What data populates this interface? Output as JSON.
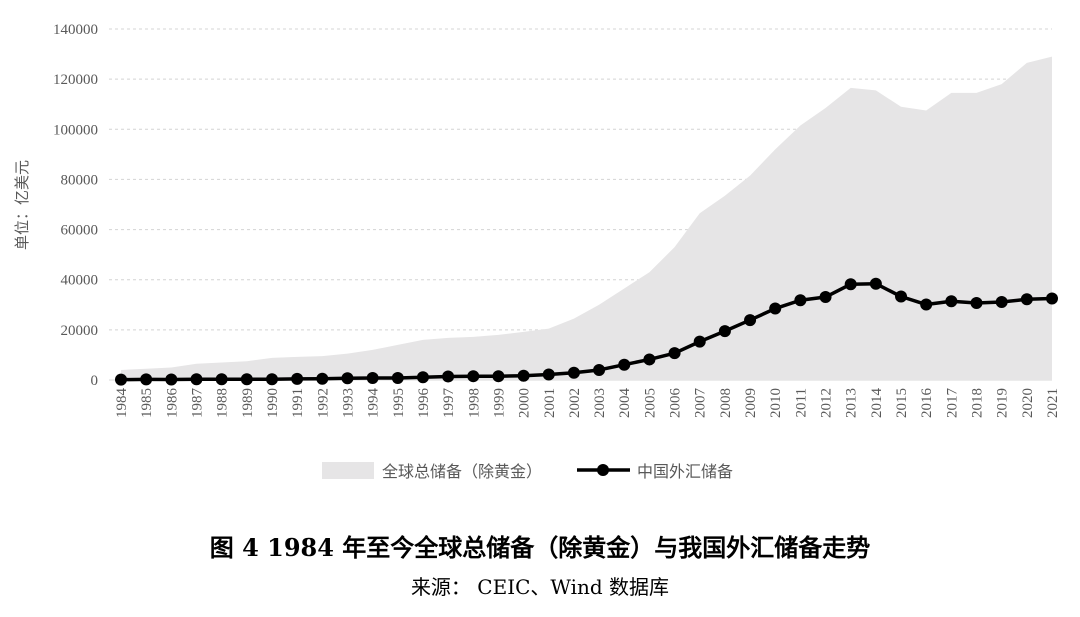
{
  "chart_data": {
    "type": "area",
    "title": "",
    "xlabel": "",
    "ylabel": "单位：亿美元",
    "ylim": [
      0,
      140000
    ],
    "yticks": [
      "0",
      "20000",
      "40000",
      "60000",
      "80000",
      "100000",
      "120000",
      "140000"
    ],
    "grid": "horizontal dashed",
    "legend_position": "bottom",
    "categories": [
      "1984",
      "1985",
      "1986",
      "1987",
      "1988",
      "1989",
      "1990",
      "1991",
      "1992",
      "1993",
      "1994",
      "1995",
      "1996",
      "1997",
      "1998",
      "1999",
      "2000",
      "2001",
      "2002",
      "2003",
      "2004",
      "2005",
      "2006",
      "2007",
      "2008",
      "2009",
      "2010",
      "2011",
      "2012",
      "2013",
      "2014",
      "2015",
      "2016",
      "2017",
      "2018",
      "2019",
      "2020",
      "2021"
    ],
    "series": [
      {
        "name": "全球总储备（除黄金）",
        "kind": "area",
        "color": "#e6e5e6",
        "values": [
          4000,
          4500,
          5000,
          6500,
          7000,
          7500,
          8800,
          9200,
          9500,
          10500,
          12000,
          14000,
          16000,
          16800,
          17200,
          18000,
          19200,
          20500,
          24500,
          30000,
          36500,
          43000,
          53000,
          66500,
          73500,
          81500,
          92000,
          101500,
          108500,
          116500,
          115500,
          109000,
          107500,
          114500,
          114500,
          118000,
          126500,
          129000
        ]
      },
      {
        "name": "中国外汇储备",
        "kind": "line",
        "color": "#000000",
        "values": [
          150,
          250,
          200,
          300,
          300,
          300,
          300,
          450,
          500,
          700,
          800,
          800,
          1100,
          1400,
          1500,
          1500,
          1700,
          2200,
          2900,
          4000,
          6100,
          8200,
          10700,
          15300,
          19500,
          23900,
          28500,
          31800,
          33100,
          38200,
          38400,
          33300,
          30100,
          31400,
          30700,
          31100,
          32200,
          32500
        ]
      }
    ]
  },
  "caption": {
    "title": "图 4 1984 年至今全球总储备（除黄金）与我国外汇储备走势",
    "source": "来源： CEIC、Wind 数据库"
  }
}
